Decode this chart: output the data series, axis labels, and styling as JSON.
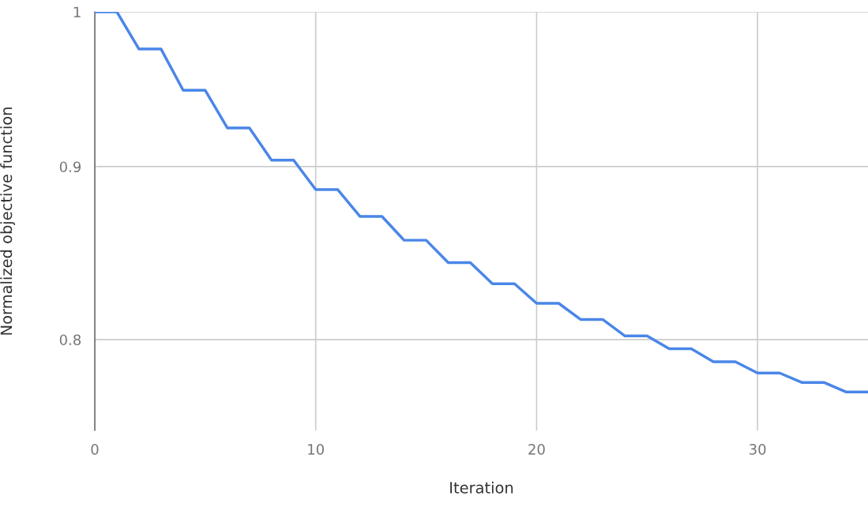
{
  "chart_data": {
    "type": "line",
    "xlabel": "Iteration",
    "ylabel": "Normalized objective function",
    "x": [
      0,
      1,
      2,
      3,
      4,
      5,
      6,
      7,
      8,
      9,
      10,
      11,
      12,
      13,
      14,
      15,
      16,
      17,
      18,
      19,
      20,
      21,
      22,
      23,
      24,
      25,
      26,
      27,
      28,
      29,
      30,
      31,
      32,
      33,
      34,
      35
    ],
    "series": [
      {
        "color": "#4a86e8",
        "values": [
          1.0,
          1.0,
          0.975,
          0.975,
          0.948,
          0.948,
          0.924,
          0.924,
          0.904,
          0.904,
          0.886,
          0.886,
          0.87,
          0.87,
          0.856,
          0.856,
          0.843,
          0.843,
          0.831,
          0.831,
          0.82,
          0.82,
          0.811,
          0.811,
          0.802,
          0.802,
          0.795,
          0.795,
          0.788,
          0.788,
          0.782,
          0.782,
          0.777,
          0.777,
          0.772,
          0.772
        ]
      }
    ],
    "log": "y",
    "xlim": [
      0,
      35
    ],
    "ylim": [
      0.752,
      1.0
    ],
    "xticks": [
      0,
      10,
      20,
      30
    ],
    "yticks": [
      0.8,
      0.9,
      {
        "value": 1.0,
        "label": "1"
      }
    ],
    "grid": true
  }
}
